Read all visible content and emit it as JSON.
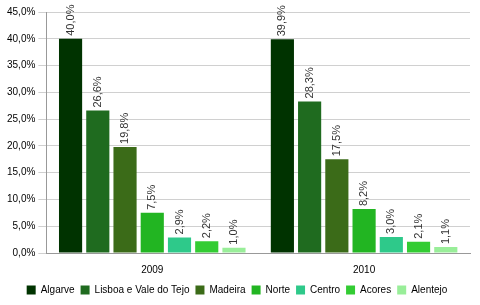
{
  "chart_data": {
    "type": "bar",
    "categories": [
      "2009",
      "2010"
    ],
    "series": [
      {
        "name": "Algarve",
        "color": "#003300",
        "values": [
          40.0,
          39.9
        ],
        "value_labels": [
          "40,0%",
          "39,9%"
        ]
      },
      {
        "name": "Lisboa e Vale do Tejo",
        "color": "#1f6b1f",
        "values": [
          26.6,
          28.3
        ],
        "value_labels": [
          "26,6%",
          "28,3%"
        ]
      },
      {
        "name": "Madeira",
        "color": "#3b6b18",
        "values": [
          19.8,
          17.5
        ],
        "value_labels": [
          "19,8%",
          "17,5%"
        ]
      },
      {
        "name": "Norte",
        "color": "#22b522",
        "values": [
          7.5,
          8.2
        ],
        "value_labels": [
          "7,5%",
          "8,2%"
        ]
      },
      {
        "name": "Centro",
        "color": "#2ec98a",
        "values": [
          2.9,
          3.0
        ],
        "value_labels": [
          "2,9%",
          "3,0%"
        ]
      },
      {
        "name": "Acores",
        "color": "#33cc33",
        "values": [
          2.2,
          2.1
        ],
        "value_labels": [
          "2,2%",
          "2,1%"
        ]
      },
      {
        "name": "Alentejo",
        "color": "#99ee99",
        "values": [
          1.0,
          1.1
        ],
        "value_labels": [
          "1,0%",
          "1,1%"
        ]
      }
    ],
    "ylim": [
      0,
      45
    ],
    "yticks": [
      {
        "value": 0,
        "label": "0,0%"
      },
      {
        "value": 5,
        "label": "5,0%"
      },
      {
        "value": 10,
        "label": "10,0%"
      },
      {
        "value": 15,
        "label": "15,0%"
      },
      {
        "value": 20,
        "label": "20,0%"
      },
      {
        "value": 25,
        "label": "25,0%"
      },
      {
        "value": 30,
        "label": "30,0%"
      },
      {
        "value": 35,
        "label": "35,0%"
      },
      {
        "value": 40,
        "label": "40,0%"
      },
      {
        "value": 45,
        "label": "45,0%"
      }
    ],
    "grid": true,
    "legend": "bottom",
    "data_labels": true
  }
}
